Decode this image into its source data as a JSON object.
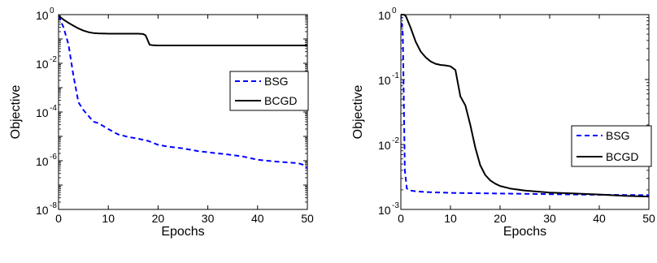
{
  "chart_data": [
    {
      "type": "line",
      "xlabel": "Epochs",
      "ylabel": "Objective",
      "xlim": [
        0,
        50
      ],
      "ylim_log10": [
        -8,
        0
      ],
      "y_scale": "log",
      "grid": false,
      "legend_position": "right",
      "x_ticks": [
        "0",
        "10",
        "20",
        "30",
        "40",
        "50"
      ],
      "y_ticks": [
        {
          "base": "10",
          "exp": "0"
        },
        {
          "base": "10",
          "exp": "-2"
        },
        {
          "base": "10",
          "exp": "-4"
        },
        {
          "base": "10",
          "exp": "-6"
        },
        {
          "base": "10",
          "exp": "-8"
        }
      ],
      "series": [
        {
          "name": "BSG",
          "color": "#0000ff",
          "dash": "dashed",
          "x": [
            0,
            1,
            2,
            3,
            4,
            5,
            6,
            7,
            8,
            10,
            12,
            14,
            16,
            18,
            20,
            22,
            25,
            28,
            31,
            34,
            37,
            40,
            43,
            46,
            48,
            49,
            50
          ],
          "y": [
            0.9,
            0.3,
            0.06,
            0.003,
            0.00025,
            0.00012,
            7e-05,
            4e-05,
            3.5e-05,
            2e-05,
            1.2e-05,
            9.5e-06,
            8e-06,
            6.5e-06,
            4.5e-06,
            3.8e-06,
            3.2e-06,
            2.5e-06,
            2.1e-06,
            1.8e-06,
            1.5e-06,
            1.1e-06,
            9.5e-07,
            8.5e-07,
            8e-07,
            7e-07,
            4.8e-07
          ]
        },
        {
          "name": "BCGD",
          "color": "#000000",
          "dash": "solid",
          "x": [
            0,
            1,
            2,
            3,
            4,
            5,
            6,
            7,
            8,
            10,
            12,
            14,
            15,
            16,
            17,
            17.5,
            18,
            18.3,
            19,
            20,
            25,
            30,
            35,
            40,
            45,
            50
          ],
          "y": [
            0.9,
            0.62,
            0.46,
            0.35,
            0.27,
            0.22,
            0.19,
            0.175,
            0.17,
            0.165,
            0.165,
            0.165,
            0.165,
            0.165,
            0.16,
            0.14,
            0.08,
            0.058,
            0.055,
            0.054,
            0.054,
            0.054,
            0.054,
            0.054,
            0.054,
            0.054
          ]
        }
      ]
    },
    {
      "type": "line",
      "xlabel": "Epochs",
      "ylabel": "Objective",
      "xlim": [
        0,
        50
      ],
      "ylim_log10": [
        -3,
        0
      ],
      "y_scale": "log",
      "grid": false,
      "legend_position": "right",
      "x_ticks": [
        "0",
        "10",
        "20",
        "30",
        "40",
        "50"
      ],
      "y_ticks": [
        {
          "base": "10",
          "exp": "0"
        },
        {
          "base": "10",
          "exp": "-1"
        },
        {
          "base": "10",
          "exp": "-2"
        },
        {
          "base": "10",
          "exp": "-3"
        }
      ],
      "series": [
        {
          "name": "BSG",
          "color": "#0000ff",
          "dash": "dashed",
          "x": [
            0,
            0.4,
            0.8,
            1.2,
            2,
            3,
            5,
            10,
            15,
            20,
            25,
            30,
            35,
            40,
            45,
            50
          ],
          "y": [
            1.0,
            0.5,
            0.004,
            0.0021,
            0.00195,
            0.0019,
            0.00185,
            0.0018,
            0.00178,
            0.00176,
            0.00174,
            0.00172,
            0.0017,
            0.00168,
            0.00167,
            0.00166
          ]
        },
        {
          "name": "BCGD",
          "color": "#000000",
          "dash": "solid",
          "x": [
            0,
            0.6,
            1,
            2,
            3,
            4,
            5,
            6,
            7,
            8,
            9,
            10,
            11,
            12,
            13,
            14,
            15,
            16,
            17,
            18,
            19,
            20,
            22,
            25,
            30,
            35,
            40,
            45,
            50
          ],
          "y": [
            1.0,
            1.0,
            0.95,
            0.62,
            0.38,
            0.27,
            0.22,
            0.19,
            0.175,
            0.168,
            0.165,
            0.16,
            0.14,
            0.055,
            0.04,
            0.02,
            0.009,
            0.0048,
            0.0034,
            0.0028,
            0.0025,
            0.0023,
            0.0021,
            0.00195,
            0.00182,
            0.00176,
            0.0017,
            0.00162,
            0.00158
          ]
        }
      ]
    }
  ]
}
